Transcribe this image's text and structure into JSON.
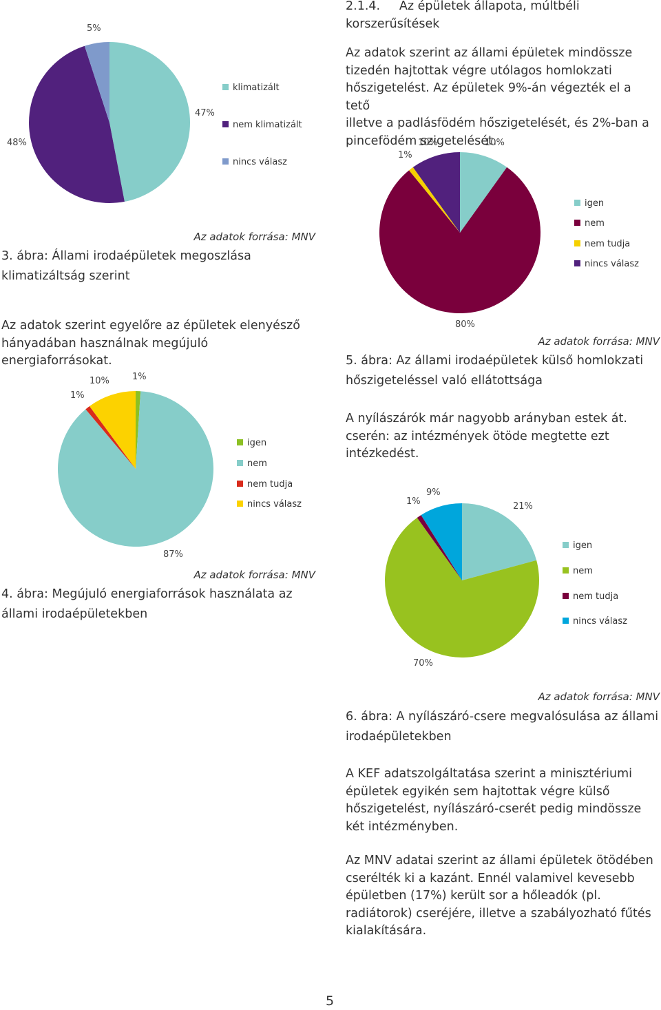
{
  "section": {
    "number": "2.1.4.",
    "title_line1": "Az épületek állapota, múltbéli",
    "title_line2": "korszerűsítések"
  },
  "paragraphs": {
    "p1": [
      "Az adatok szerint az állami épületek mindössze",
      "tizedén hajtottak végre utólagos homlokzati",
      "hőszigetelést. Az épületek 9%-án végezték el a tető",
      "illetve a padlásfödém hőszigetelését, és 2%-ban a",
      "pincefödém szigetelését."
    ],
    "p2": [
      "Az adatok szerint egyelőre az épületek elenyésző",
      "hányadában használnak megújuló",
      "energiaforrásokat."
    ],
    "p3": [
      "A nyílászárók már nagyobb arányban estek át.",
      "cserén: az intézmények ötöde megtette ezt",
      "intézkedést."
    ],
    "p4": [
      "A KEF adatszolgáltatása szerint a minisztériumi",
      "épületek egyikén sem hajtottak végre külső",
      "hőszigetelést, nyílászáró-cserét pedig mindössze",
      "két intézményben."
    ],
    "p5": [
      "Az MNV adatai szerint az állami épületek ötödében",
      "cserélték ki a kazánt. Ennél valamivel kevesebb",
      "épületben (17%) került sor a hőleadók (pl.",
      "radiátorok) cseréjére, illetve a szabályozható fűtés",
      "kialakítására."
    ]
  },
  "figures": {
    "fig3": {
      "source": "Az adatok forrása: MNV",
      "caption_line1": "3. ábra: Állami irodaépületek megoszlása",
      "caption_line2": "klimatizáltság szerint"
    },
    "fig4": {
      "source": "Az adatok forrása: MNV",
      "caption_line1": "4. ábra: Megújuló energiaforrások használata az",
      "caption_line2": "állami irodaépületekben"
    },
    "fig5": {
      "source": "Az adatok forrása: MNV",
      "caption_line1": "5. ábra: Az állami irodaépületek külső homlokzati",
      "caption_line2": "hőszigeteléssel való ellátottsága"
    },
    "fig6": {
      "source": "Az adatok forrása: MNV",
      "caption_line1": "6. ábra: A nyílászáró-csere megvalósulása az állami",
      "caption_line2": "irodaépületekben"
    }
  },
  "chart_data": [
    {
      "id": "fig3",
      "type": "pie",
      "title": "Állami irodaépületek megoszlása klimatizáltság szerint",
      "categories": [
        "klimatizált",
        "nem klimatizált",
        "nincs válasz"
      ],
      "values": [
        47,
        48,
        5
      ],
      "labels": [
        "47%",
        "48%",
        "5%"
      ],
      "colors": [
        "#86cdc9",
        "#51217d",
        "#7f9acb"
      ],
      "legend": "right"
    },
    {
      "id": "fig5",
      "type": "pie",
      "title": "Az állami irodaépületek külső homlokzati hőszigeteléssel való ellátottsága",
      "categories": [
        "igen",
        "nem",
        "nem tudja",
        "nincs válasz"
      ],
      "values": [
        10,
        80,
        1,
        10
      ],
      "labels": [
        "10%",
        "80%",
        "1%",
        "10%"
      ],
      "colors": [
        "#86cdc9",
        "#7a003c",
        "#f5d000",
        "#51217d"
      ],
      "legend": "right"
    },
    {
      "id": "fig4",
      "type": "pie",
      "title": "Megújuló energiaforrások használata az állami irodaépületekben",
      "categories": [
        "igen",
        "nem",
        "nem tudja",
        "nincs válasz"
      ],
      "values": [
        1,
        87,
        1,
        10
      ],
      "labels": [
        "1%",
        "87%",
        "1%",
        "10%"
      ],
      "colors": [
        "#8cc024",
        "#86cdc9",
        "#d92b1c",
        "#fcd200"
      ],
      "legend": "right"
    },
    {
      "id": "fig6",
      "type": "pie",
      "title": "A nyílászáró-csere megvalósulása az állami irodaépületekben",
      "categories": [
        "igen",
        "nem",
        "nem tudja",
        "nincs válasz"
      ],
      "values": [
        21,
        70,
        1,
        9
      ],
      "labels": [
        "21%",
        "70%",
        "1%",
        "9%"
      ],
      "colors": [
        "#86cdc9",
        "#98c21f",
        "#7a003c",
        "#00a6dc"
      ],
      "legend": "right"
    }
  ],
  "page_number": "5"
}
